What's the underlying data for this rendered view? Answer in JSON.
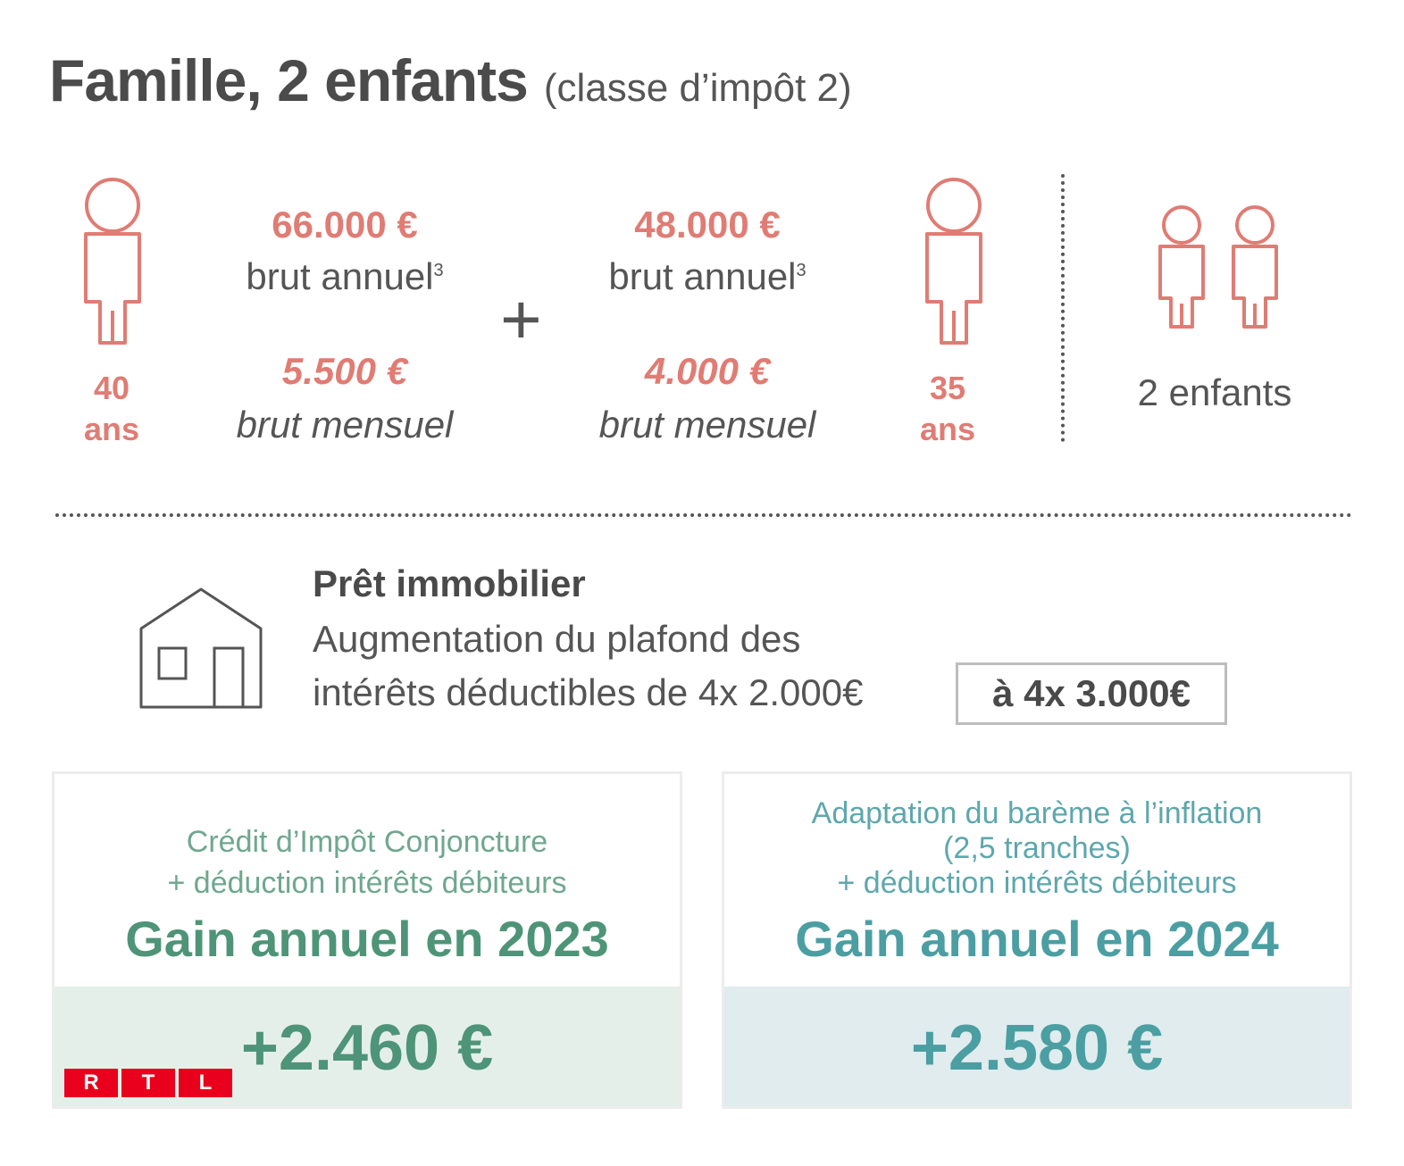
{
  "title": {
    "main": "Famille, 2 enfants",
    "sub": "(classe d’impôt 2)"
  },
  "person1": {
    "age_number": "40",
    "age_unit": "ans",
    "annual_amount": "66.000 €",
    "annual_label": "brut annuel",
    "annual_footnote": "3",
    "monthly_amount": "5.500 €",
    "monthly_label": "brut mensuel"
  },
  "plus_sign": "+",
  "person2": {
    "age_number": "35",
    "age_unit": "ans",
    "annual_amount": "48.000 €",
    "annual_label": "brut annuel",
    "annual_footnote": "3",
    "monthly_amount": "4.000 €",
    "monthly_label": "brut mensuel"
  },
  "children": {
    "label": "2 enfants"
  },
  "loan": {
    "title": "Prêt immobilier",
    "line1": "Augmentation du plafond des",
    "line2": "intérêts déductibles de 4x  2.000€",
    "highlight": "à  4x  3.000€"
  },
  "card_2023": {
    "sub_line1": "Crédit d’Impôt Conjoncture",
    "sub_line2": "+ déduction intérêts débiteurs",
    "heading": "Gain annuel en 2023",
    "value": "+2.460 €"
  },
  "card_2024": {
    "sub_line1": "Adaptation du barème à l’inflation",
    "sub_line2": "(2,5 tranches)",
    "sub_line3": "+ déduction intérêts débiteurs",
    "heading": "Gain annuel en 2024",
    "value": "+2.580 €"
  },
  "logo": {
    "letters": [
      "R",
      "T",
      "L"
    ]
  },
  "colors": {
    "salary_accent": "#e07c74",
    "green_accent": "#4e9478",
    "teal_accent": "#4b9ea2",
    "card1_bg": "#e5efe9",
    "card2_bg": "#e0ecee",
    "logo_red": "#e8001c"
  },
  "icons": {
    "person": "person-outline-icon",
    "child": "child-outline-icon",
    "house": "house-outline-icon"
  }
}
